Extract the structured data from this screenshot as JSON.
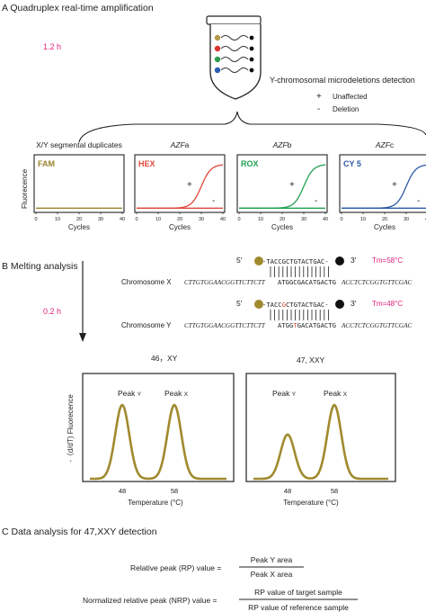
{
  "section_a": {
    "title": "A  Quadruplex real-time amplification",
    "time": "1.2 h",
    "detection_label": "Y-chromosomal microdeletions detection",
    "legend_unaffected_symbol": "+",
    "legend_unaffected": "Unaffected",
    "legend_deletion_symbol": "-",
    "legend_deletion": "Deletion",
    "dot_colors": [
      "#b49a4a",
      "#d9352b",
      "#2a9d4e",
      "#2b5fb5"
    ],
    "panels": [
      {
        "header": "X/Y segmental duplicates",
        "header_italic": "",
        "dye": "FAM",
        "color": "#9a8430",
        "curve": "flat"
      },
      {
        "header": "",
        "header_italic": "AZF",
        "header_suffix": "a",
        "dye": "HEX",
        "color": "#e0483c",
        "curve": "sigmoid"
      },
      {
        "header": "",
        "header_italic": "AZF",
        "header_suffix": "b",
        "dye": "ROX",
        "color": "#22a050",
        "curve": "sigmoid"
      },
      {
        "header": "",
        "header_italic": "AZF",
        "header_suffix": "c",
        "dye": "CY 5",
        "color": "#2e5aa8",
        "curve": "sigmoid"
      }
    ],
    "ylabel": "Fluorecence",
    "xlabel": "Cycles",
    "x_ticks": [
      "0",
      "10",
      "20",
      "30",
      "40"
    ],
    "plus": "+",
    "minus": "-"
  },
  "section_b": {
    "title": "B  Melting analysis",
    "time": "0.2 h",
    "five_prime": "5'",
    "three_prime": "3'",
    "probe_x": "-TACCGCTGTACTGAC-",
    "probe_y_a": "-TACC",
    "probe_y_mut": "G",
    "probe_y_b": "CTGTACTGAC-",
    "tm_x": "Tm=58°C",
    "tm_y": "Tm=48°C",
    "chrom_x": "Chromosome X",
    "chrom_y": "Chromosome Y",
    "seq_left": "CTTGTGGAACGGTTCTTCTT",
    "seq_mid_x": "ATGGCGACATGACTG",
    "seq_mid_y_a": "ATGG",
    "seq_mid_y_mut": "T",
    "seq_mid_y_b": "GACATGACTG",
    "seq_right": "ACCTCTCGGTGTTCGAC",
    "plot_left_title": "46，XY",
    "plot_right_title": "47, XXY",
    "peak_y": "Peak",
    "peak_y_sub": "Y",
    "peak_x": "Peak",
    "peak_x_sub": "X",
    "ylabel": "-（d/dT) Fluorecence",
    "xlabel": "Temperature (°C)",
    "tick_48": "48",
    "tick_58": "58",
    "curve_color": "#a08a2e",
    "mut_color": "#e0483c",
    "tm_color": "#e0217a"
  },
  "section_c": {
    "title": "C  Data analysis for 47,XXY detection",
    "rp_label": "Relative peak (RP) value  =",
    "rp_num": "Peak Y area",
    "rp_den": "Peak X area",
    "nrp_label": "Normalized relative peak (NRP) value  =",
    "nrp_num": "RP value of target sample",
    "nrp_den": "RP value of reference sample"
  },
  "chart_data": [
    {
      "type": "line",
      "title": "",
      "dye": "FAM",
      "xlabel": "Cycles",
      "ylabel": "Fluorecence",
      "xlim": [
        0,
        40
      ],
      "series": [
        {
          "name": "",
          "x": [
            0,
            40
          ],
          "values": [
            0.05,
            0.05
          ]
        }
      ]
    },
    {
      "type": "line",
      "title": "",
      "dye": "HEX",
      "xlabel": "Cycles",
      "ylabel": "Fluorecence",
      "xlim": [
        0,
        40
      ],
      "series": [
        {
          "name": "+",
          "x": [
            0,
            20,
            25,
            28,
            30,
            32,
            35,
            40
          ],
          "values": [
            0.05,
            0.05,
            0.07,
            0.2,
            0.45,
            0.7,
            0.88,
            0.95
          ]
        },
        {
          "name": "-",
          "x": [
            0,
            40
          ],
          "values": [
            0.05,
            0.05
          ]
        }
      ]
    },
    {
      "type": "line",
      "title": "",
      "dye": "ROX",
      "xlabel": "Cycles",
      "ylabel": "Fluorecence",
      "xlim": [
        0,
        40
      ],
      "series": [
        {
          "name": "+",
          "x": [
            0,
            20,
            25,
            28,
            30,
            32,
            35,
            40
          ],
          "values": [
            0.05,
            0.05,
            0.07,
            0.2,
            0.45,
            0.7,
            0.88,
            0.95
          ]
        },
        {
          "name": "-",
          "x": [
            0,
            40
          ],
          "values": [
            0.05,
            0.05
          ]
        }
      ]
    },
    {
      "type": "line",
      "title": "",
      "dye": "CY 5",
      "xlabel": "Cycles",
      "ylabel": "Fluorecence",
      "xlim": [
        0,
        40
      ],
      "series": [
        {
          "name": "+",
          "x": [
            0,
            20,
            25,
            28,
            30,
            32,
            35,
            40
          ],
          "values": [
            0.05,
            0.05,
            0.07,
            0.2,
            0.45,
            0.7,
            0.88,
            0.95
          ]
        },
        {
          "name": "-",
          "x": [
            0,
            40
          ],
          "values": [
            0.05,
            0.05
          ]
        }
      ]
    },
    {
      "type": "line",
      "title": "46，XY",
      "xlabel": "Temperature (°C)",
      "ylabel": "-（d/dT) Fluorecence",
      "peaks": [
        {
          "name": "Peak Y",
          "temp": 48,
          "height": 1.0
        },
        {
          "name": "Peak X",
          "temp": 58,
          "height": 1.0
        }
      ]
    },
    {
      "type": "line",
      "title": "47, XXY",
      "xlabel": "Temperature (°C)",
      "peaks": [
        {
          "name": "Peak Y",
          "temp": 48,
          "height": 0.6
        },
        {
          "name": "Peak X",
          "temp": 58,
          "height": 1.0
        }
      ]
    }
  ]
}
